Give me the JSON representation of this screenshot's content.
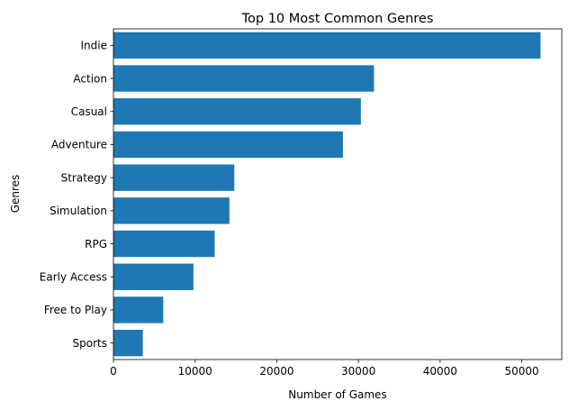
{
  "chart_data": {
    "type": "bar",
    "orientation": "horizontal",
    "title": "Top 10 Most Common Genres",
    "xlabel": "Number of Games",
    "ylabel": "Genres",
    "categories": [
      "Indie",
      "Action",
      "Casual",
      "Adventure",
      "Strategy",
      "Simulation",
      "RPG",
      "Early Access",
      "Free to Play",
      "Sports"
    ],
    "values": [
      52300,
      31900,
      30300,
      28100,
      14800,
      14200,
      12400,
      9800,
      6100,
      3600
    ],
    "xlim": [
      0,
      54900
    ],
    "xticks": [
      0,
      10000,
      20000,
      30000,
      40000,
      50000
    ],
    "grid": false,
    "bar_color": "#1f77b4"
  }
}
